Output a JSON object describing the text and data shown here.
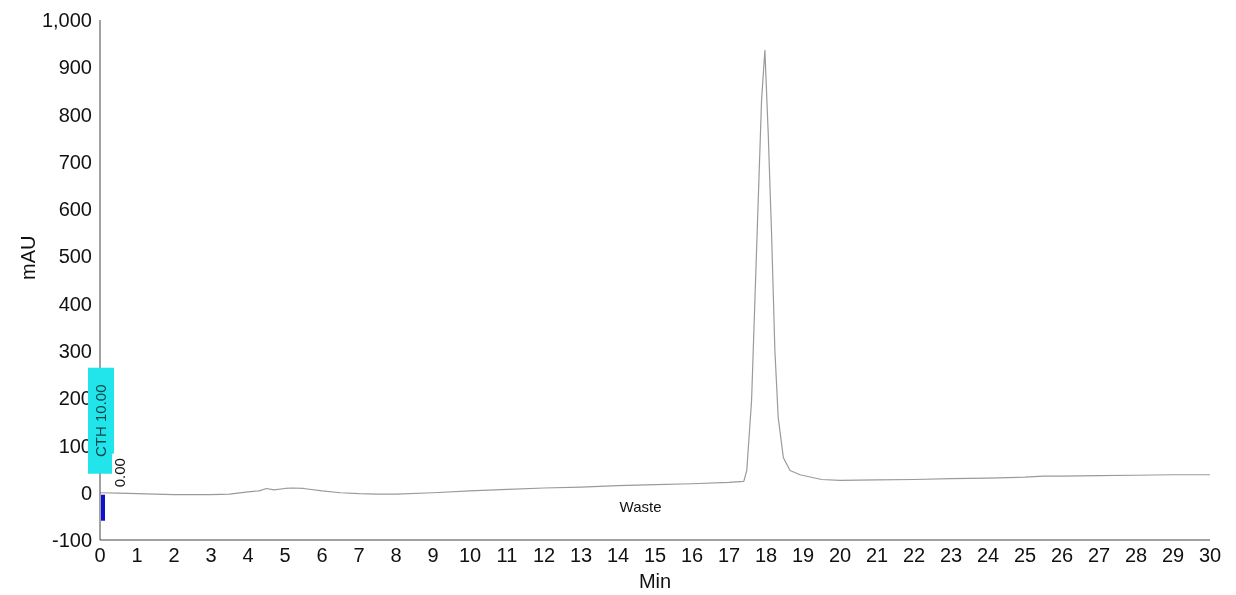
{
  "chart_data": {
    "type": "line",
    "xlabel": "Min",
    "ylabel": "mAU",
    "series": [
      {
        "color": "#9a9a9a",
        "x": [
          0,
          0.5,
          1,
          1.5,
          2,
          2.5,
          3,
          3.5,
          4,
          4.3,
          4.5,
          4.7,
          5,
          5.2,
          5.5,
          6,
          6.5,
          7,
          7.5,
          8,
          9,
          10,
          11,
          12,
          13,
          14,
          15,
          16,
          17,
          17.4,
          17.48,
          17.61,
          17.7,
          17.79,
          17.88,
          17.97,
          18.06,
          18.15,
          18.24,
          18.33,
          18.47,
          18.65,
          18.92,
          19.5,
          20,
          21,
          22,
          23,
          24,
          25,
          25.5,
          26,
          27,
          28,
          29,
          30
        ],
        "values": [
          0,
          -1,
          -2,
          -3,
          -4,
          -4,
          -4,
          -3,
          2,
          4,
          9,
          6,
          9,
          10,
          9,
          4,
          0,
          -2,
          -3,
          -3,
          0,
          4,
          7,
          10,
          12,
          15,
          17,
          19,
          22,
          24,
          47,
          195,
          407,
          619,
          830,
          936,
          760,
          549,
          301,
          159,
          74,
          47,
          38,
          28,
          26,
          27,
          28,
          30,
          31,
          33,
          35,
          35,
          36,
          37,
          38,
          38
        ]
      }
    ],
    "xlim": [
      0,
      30
    ],
    "xticks": [
      0,
      1,
      2,
      3,
      4,
      5,
      6,
      7,
      8,
      9,
      10,
      11,
      12,
      13,
      14,
      15,
      16,
      17,
      18,
      19,
      20,
      21,
      22,
      23,
      24,
      25,
      26,
      27,
      28,
      29,
      30
    ],
    "ylim": [
      -100,
      1000
    ],
    "yticks": [
      -100,
      0,
      100,
      200,
      300,
      400,
      500,
      600,
      700,
      800,
      900,
      {
        "value": 1000,
        "label": "1,000"
      }
    ],
    "grid": false,
    "legend": false,
    "marker": "none",
    "line_style": "solid",
    "annotations": [
      "CTH 10.00",
      "0.00",
      "Waste"
    ]
  }
}
